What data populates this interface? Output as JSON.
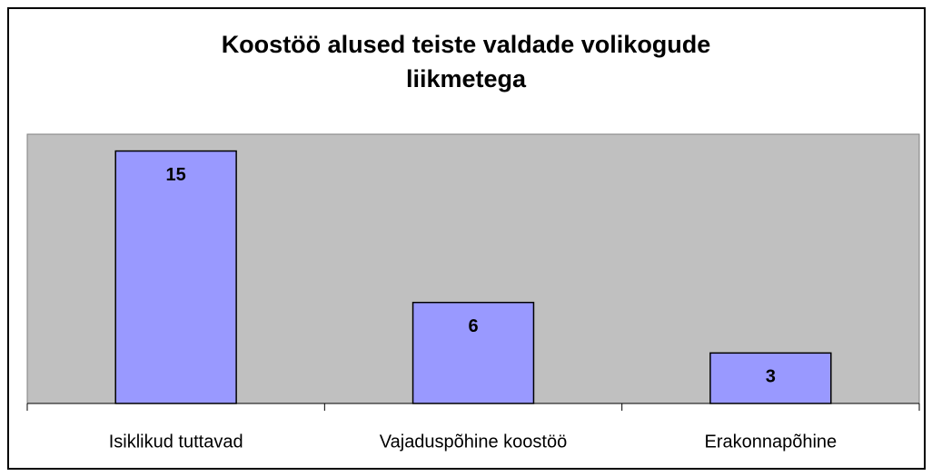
{
  "chart_data": {
    "type": "bar",
    "title": "Koostöö alused teiste valdade volikogude liikmetega",
    "categories": [
      "Isiklikud tuttavad",
      "Vajaduspõhine koostöö",
      "Erakonnapõhine"
    ],
    "values": [
      15,
      6,
      3
    ],
    "color": "#9999ff",
    "ylim": [
      0,
      16
    ],
    "grid": false
  }
}
